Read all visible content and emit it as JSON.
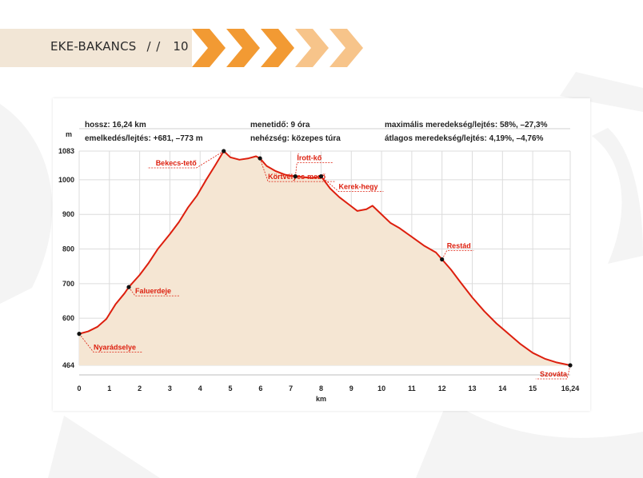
{
  "header": {
    "series": "EKE-BAKANCS",
    "separator": "/ /",
    "page_number": "10"
  },
  "info": {
    "length": "hossz: 16,24 km",
    "elevation": "emelkedés/lejtés: +681, –773 m",
    "time": "menetidő: 9 óra",
    "difficulty": "nehézség: közepes túra",
    "max_slope": "maximális meredekség/lejtés: 58%, –27,3%",
    "avg_slope": "átlagos meredekség/lejtés: 4,19%, –4,76%"
  },
  "colors": {
    "line": "#dd1f0e",
    "fill": "#f5e6d3",
    "accent_orange": "#f29a33",
    "header_band": "#f2e6d6"
  },
  "chart_data": {
    "type": "area",
    "xlabel": "km",
    "ylabel": "m",
    "xlim": [
      0,
      16.24
    ],
    "ylim": [
      464,
      1083
    ],
    "x_ticks": [
      "0",
      "1",
      "2",
      "3",
      "4",
      "5",
      "6",
      "7",
      "8",
      "9",
      "10",
      "11",
      "12",
      "13",
      "14",
      "15",
      "16,24"
    ],
    "y_ticks": [
      "464",
      "600",
      "700",
      "800",
      "900",
      "1000",
      "1083"
    ],
    "grid": true,
    "series": [
      {
        "points": [
          [
            0,
            555
          ],
          [
            0.3,
            562
          ],
          [
            0.6,
            575
          ],
          [
            0.9,
            598
          ],
          [
            1.2,
            640
          ],
          [
            1.5,
            672
          ],
          [
            1.64,
            690
          ],
          [
            2.0,
            725
          ],
          [
            2.3,
            760
          ],
          [
            2.6,
            800
          ],
          [
            3.0,
            843
          ],
          [
            3.3,
            878
          ],
          [
            3.6,
            920
          ],
          [
            3.9,
            955
          ],
          [
            4.2,
            1000
          ],
          [
            4.5,
            1042
          ],
          [
            4.78,
            1083
          ],
          [
            5.0,
            1065
          ],
          [
            5.3,
            1058
          ],
          [
            5.6,
            1062
          ],
          [
            5.85,
            1068
          ],
          [
            5.98,
            1062
          ],
          [
            6.2,
            1040
          ],
          [
            6.5,
            1025
          ],
          [
            6.8,
            1015
          ],
          [
            7.1,
            1010
          ],
          [
            7.4,
            1008
          ],
          [
            7.7,
            1005
          ],
          [
            8.0,
            1010
          ],
          [
            8.3,
            975
          ],
          [
            8.6,
            950
          ],
          [
            8.9,
            930
          ],
          [
            9.2,
            910
          ],
          [
            9.5,
            915
          ],
          [
            9.7,
            925
          ],
          [
            10.0,
            900
          ],
          [
            10.3,
            875
          ],
          [
            10.6,
            860
          ],
          [
            11.0,
            835
          ],
          [
            11.4,
            810
          ],
          [
            11.8,
            790
          ],
          [
            12.0,
            770
          ],
          [
            12.3,
            740
          ],
          [
            12.6,
            705
          ],
          [
            13.0,
            660
          ],
          [
            13.4,
            620
          ],
          [
            13.8,
            585
          ],
          [
            14.2,
            555
          ],
          [
            14.6,
            525
          ],
          [
            15.0,
            500
          ],
          [
            15.4,
            483
          ],
          [
            15.8,
            472
          ],
          [
            16.24,
            464
          ]
        ]
      }
    ],
    "annotations": [
      {
        "label": "Nyarádselye",
        "x": 0,
        "y": 555
      },
      {
        "label": "Faluerdeje",
        "x": 1.64,
        "y": 690
      },
      {
        "label": "Bekecs-tető",
        "x": 4.78,
        "y": 1083
      },
      {
        "label": "Körtvélyes-mező",
        "x": 5.98,
        "y": 1062
      },
      {
        "label": "Írott-kő",
        "x": 7.15,
        "y": 1010
      },
      {
        "label": "Kerek-hegy",
        "x": 8.0,
        "y": 1010
      },
      {
        "label": "Restád",
        "x": 12.0,
        "y": 770
      },
      {
        "label": "Szováta",
        "x": 16.24,
        "y": 464
      }
    ]
  }
}
